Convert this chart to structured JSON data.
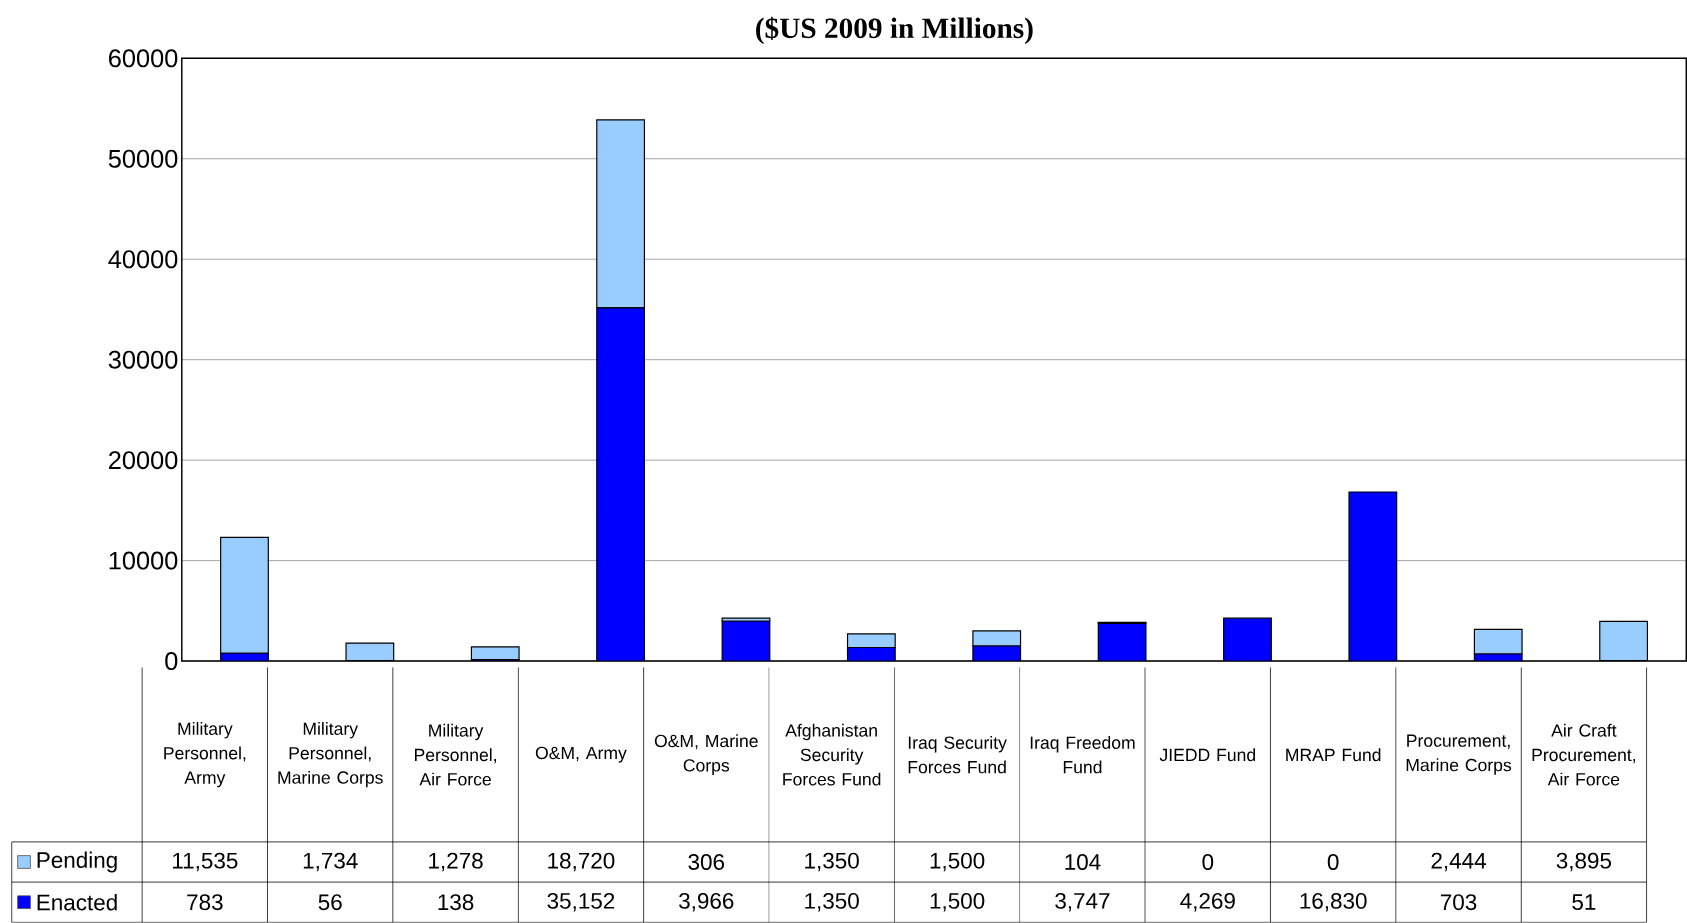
{
  "chart_data": {
    "type": "bar",
    "title": "($US 2009 in Millions)",
    "stacked": true,
    "grid": "y",
    "legend": "bottom left",
    "categories": [
      "Military Personnel, Army",
      "Military Personnel, Marine Corps",
      "Military Personnel, Air Force",
      "O&M, Army",
      "O&M, Marine Corps",
      "Afghanistan Security Forces Fund",
      "Iraq Security Forces Fund",
      "Iraq Freedom Fund",
      "JIEDD Fund",
      "MRAP Fund",
      "Procurement, Marine Corps",
      "Air Craft Procurement, Air Force"
    ],
    "series": [
      {
        "name": "Enacted",
        "color": "#0000ff",
        "values": [
          783,
          56,
          138,
          35152,
          3966,
          1350,
          1500,
          3747,
          4269,
          16830,
          703,
          51
        ],
        "value_labels": [
          "783",
          "56",
          "138",
          "35,152",
          "3,966",
          "1,350",
          "1,500",
          "3,747",
          "4,269",
          "16,830",
          "703",
          "51"
        ]
      },
      {
        "name": "Pending",
        "color": "#99ccff",
        "values": [
          11535,
          1734,
          1278,
          18720,
          306,
          1350,
          1500,
          104,
          0,
          0,
          2444,
          3895
        ],
        "value_labels": [
          "11,535",
          "1,734",
          "1,278",
          "18,720",
          "306",
          "1,350",
          "1,500",
          "104",
          "0",
          "0",
          "2,444",
          "3,895"
        ]
      }
    ],
    "ylim": [
      0,
      60000
    ],
    "yticks": [
      0,
      10000,
      20000,
      30000,
      40000,
      50000,
      60000
    ]
  }
}
